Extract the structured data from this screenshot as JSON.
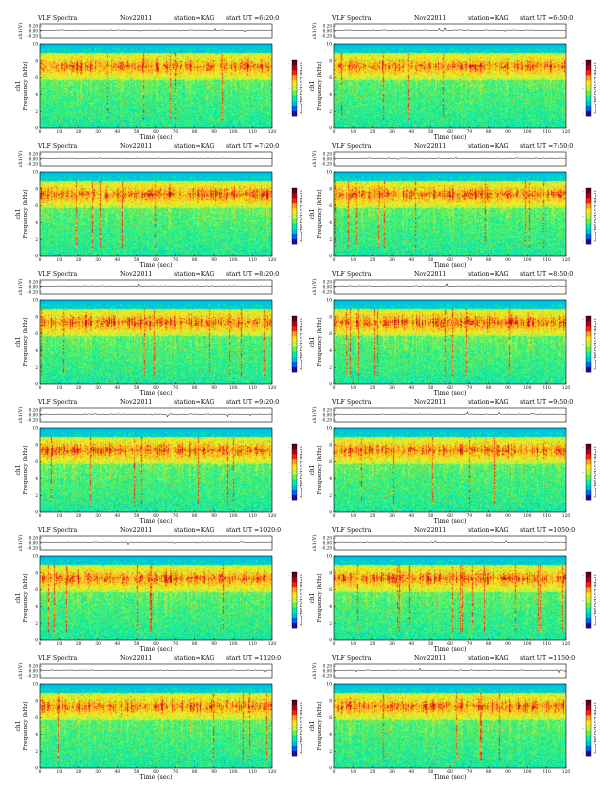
{
  "chart_data": [
    {
      "type": "heatmap",
      "title": "VLF Spectra",
      "date": "Nov22011",
      "station": "station=KAG",
      "start_ut": "start  UT =6:20:0",
      "top_ylabel": "ch1(V)",
      "top_yticks": [
        "0.20",
        "0.00",
        "-0.20"
      ],
      "ylabel": "Frequency (kHz)",
      "ylabel_ch": "ch1",
      "xlabel": "Time (sec)",
      "xticks": [
        0,
        10,
        20,
        30,
        40,
        50,
        60,
        70,
        80,
        90,
        100,
        110,
        120
      ],
      "yticks": [
        0,
        2,
        4,
        6,
        8,
        10
      ],
      "xlim": [
        0,
        120
      ],
      "ylim": [
        0,
        10
      ],
      "colorbar_label": "log(PSD(V^2/Hz))",
      "colorbar_ticks": [
        "-",
        "-",
        "-"
      ]
    },
    {
      "type": "heatmap",
      "title": "VLF Spectra",
      "date": "Nov22011",
      "station": "station=KAG",
      "start_ut": "start  UT =6:50:0",
      "top_ylabel": "ch1(V)",
      "top_yticks": [
        "0.20",
        "0.00",
        "-0.20"
      ],
      "ylabel": "Frequency (kHz)",
      "ylabel_ch": "ch1",
      "xlabel": "Time (sec)",
      "xticks": [
        0,
        10,
        20,
        30,
        40,
        50,
        60,
        70,
        80,
        90,
        100,
        110,
        120
      ],
      "yticks": [
        0,
        2,
        4,
        6,
        8,
        10
      ],
      "xlim": [
        0,
        120
      ],
      "ylim": [
        0,
        10
      ],
      "colorbar_label": "log(PSD(V^2/Hz))",
      "colorbar_ticks": [
        "-",
        "-",
        "-"
      ]
    },
    {
      "type": "heatmap",
      "title": "VLF Spectra",
      "date": "Nov22011",
      "station": "station=KAG",
      "start_ut": "start  UT =7:20:0",
      "top_ylabel": "ch1(V)",
      "top_yticks": [
        "0.20",
        "0.00",
        "-0.20"
      ],
      "ylabel": "Frequency (kHz)",
      "ylabel_ch": "ch1",
      "xlabel": "Time (sec)",
      "xticks": [
        0,
        10,
        20,
        30,
        40,
        50,
        60,
        70,
        80,
        90,
        100,
        110,
        120
      ],
      "yticks": [
        0,
        2,
        4,
        6,
        8,
        10
      ],
      "xlim": [
        0,
        120
      ],
      "ylim": [
        0,
        10
      ],
      "colorbar_label": "log(PSD(V^2/Hz))",
      "colorbar_ticks": [
        "-",
        "-",
        "-"
      ]
    },
    {
      "type": "heatmap",
      "title": "VLF Spectra",
      "date": "Nov22011",
      "station": "station=KAG",
      "start_ut": "start  UT =7:50:0",
      "top_ylabel": "ch1(V)",
      "top_yticks": [
        "0.20",
        "0.00",
        "-0.20"
      ],
      "ylabel": "Frequency (kHz)",
      "ylabel_ch": "ch1",
      "xlabel": "Time (sec)",
      "xticks": [
        0,
        10,
        20,
        30,
        40,
        50,
        60,
        70,
        80,
        90,
        100,
        110,
        120
      ],
      "yticks": [
        0,
        2,
        4,
        6,
        8,
        10
      ],
      "xlim": [
        0,
        120
      ],
      "ylim": [
        0,
        10
      ],
      "colorbar_label": "log(PSD(V^2/Hz))",
      "colorbar_ticks": [
        "-",
        "-",
        "-"
      ]
    },
    {
      "type": "heatmap",
      "title": "VLF Spectra",
      "date": "Nov22011",
      "station": "station=KAG",
      "start_ut": "start  UT =8:20:0",
      "top_ylabel": "ch1(V)",
      "top_yticks": [
        "0.20",
        "0.00",
        "-0.20"
      ],
      "ylabel": "Frequency (kHz)",
      "ylabel_ch": "ch1",
      "xlabel": "Time (sec)",
      "xticks": [
        0,
        10,
        20,
        30,
        40,
        50,
        60,
        70,
        80,
        90,
        100,
        110,
        120
      ],
      "yticks": [
        0,
        2,
        4,
        6,
        8,
        10
      ],
      "xlim": [
        0,
        120
      ],
      "ylim": [
        0,
        10
      ],
      "colorbar_label": "log(PSD(V^2/Hz))",
      "colorbar_ticks": [
        "-",
        "-",
        "-"
      ]
    },
    {
      "type": "heatmap",
      "title": "VLF Spectra",
      "date": "Nov22011",
      "station": "station=KAG",
      "start_ut": "start  UT =8:50:0",
      "top_ylabel": "ch1(V)",
      "top_yticks": [
        "0.20",
        "0.00",
        "-0.20"
      ],
      "ylabel": "Frequency (kHz)",
      "ylabel_ch": "ch1",
      "xlabel": "Time (sec)",
      "xticks": [
        0,
        10,
        20,
        30,
        40,
        50,
        60,
        70,
        80,
        90,
        100,
        110,
        120
      ],
      "yticks": [
        0,
        2,
        4,
        6,
        8,
        10
      ],
      "xlim": [
        0,
        120
      ],
      "ylim": [
        0,
        10
      ],
      "colorbar_label": "log(PSD(V^2/Hz))",
      "colorbar_ticks": [
        "-",
        "-",
        "-"
      ]
    },
    {
      "type": "heatmap",
      "title": "VLF Spectra",
      "date": "Nov22011",
      "station": "station=KAG",
      "start_ut": "start  UT =9:20:0",
      "top_ylabel": "ch1(V)",
      "top_yticks": [
        "0.20",
        "0.00",
        "-0.20"
      ],
      "ylabel": "Frequency (kHz)",
      "ylabel_ch": "ch1",
      "xlabel": "Time (sec)",
      "xticks": [
        0,
        10,
        20,
        30,
        40,
        50,
        60,
        70,
        80,
        90,
        100,
        110,
        120
      ],
      "yticks": [
        0,
        2,
        4,
        6,
        8,
        10
      ],
      "xlim": [
        0,
        120
      ],
      "ylim": [
        0,
        10
      ],
      "colorbar_label": "log(PSD(V^2/Hz))",
      "colorbar_ticks": [
        "-",
        "-",
        "-"
      ]
    },
    {
      "type": "heatmap",
      "title": "VLF Spectra",
      "date": "Nov22011",
      "station": "station=KAG",
      "start_ut": "start  UT =9:50:0",
      "top_ylabel": "ch1(V)",
      "top_yticks": [
        "0.20",
        "0.00",
        "-0.20"
      ],
      "ylabel": "Frequency (kHz)",
      "ylabel_ch": "ch1",
      "xlabel": "Time (sec)",
      "xticks": [
        0,
        10,
        20,
        30,
        40,
        50,
        60,
        70,
        80,
        90,
        100,
        110,
        120
      ],
      "yticks": [
        0,
        2,
        4,
        6,
        8,
        10
      ],
      "xlim": [
        0,
        120
      ],
      "ylim": [
        0,
        10
      ],
      "colorbar_label": "log(PSD(V^2/Hz))",
      "colorbar_ticks": [
        "-",
        "-",
        "-"
      ]
    },
    {
      "type": "heatmap",
      "title": "VLF Spectra",
      "date": "Nov22011",
      "station": "station=KAG",
      "start_ut": "start  UT =1020:0",
      "top_ylabel": "ch1(V)",
      "top_yticks": [
        "0.20",
        "0.00",
        "-0.20"
      ],
      "ylabel": "Frequency (kHz)",
      "ylabel_ch": "ch1",
      "xlabel": "Time (sec)",
      "xticks": [
        0,
        10,
        20,
        30,
        40,
        50,
        60,
        70,
        80,
        90,
        100,
        110,
        120
      ],
      "yticks": [
        0,
        2,
        4,
        6,
        8,
        10
      ],
      "xlim": [
        0,
        120
      ],
      "ylim": [
        0,
        10
      ],
      "colorbar_label": "log(PSD(V^2/Hz))",
      "colorbar_ticks": [
        "-",
        "-",
        "-"
      ]
    },
    {
      "type": "heatmap",
      "title": "VLF Spectra",
      "date": "Nov22011",
      "station": "station=KAG",
      "start_ut": "start  UT =1050:0",
      "top_ylabel": "ch1(V)",
      "top_yticks": [
        "0.20",
        "0.00",
        "-0.20"
      ],
      "ylabel": "Frequency (kHz)",
      "ylabel_ch": "ch1",
      "xlabel": "Time (sec)",
      "xticks": [
        0,
        10,
        20,
        30,
        40,
        50,
        60,
        70,
        80,
        90,
        100,
        110,
        120
      ],
      "yticks": [
        0,
        2,
        4,
        6,
        8,
        10
      ],
      "xlim": [
        0,
        120
      ],
      "ylim": [
        0,
        10
      ],
      "colorbar_label": "log(PSD(V^2/Hz))",
      "colorbar_ticks": [
        "-",
        "-",
        "-"
      ]
    },
    {
      "type": "heatmap",
      "title": "VLF Spectra",
      "date": "Nov22011",
      "station": "station=KAG",
      "start_ut": "start  UT =1120:0",
      "top_ylabel": "ch1(V)",
      "top_yticks": [
        "0.20",
        "0.00",
        "-0.20"
      ],
      "ylabel": "Frequency (kHz)",
      "ylabel_ch": "ch1",
      "xlabel": "Time (sec)",
      "xticks": [
        0,
        10,
        20,
        30,
        40,
        50,
        60,
        70,
        80,
        90,
        100,
        110,
        120
      ],
      "yticks": [
        0,
        2,
        4,
        6,
        8,
        10
      ],
      "xlim": [
        0,
        120
      ],
      "ylim": [
        0,
        10
      ],
      "colorbar_label": "log(PSD(V^2/Hz))",
      "colorbar_ticks": [
        "-",
        "-",
        "-"
      ]
    },
    {
      "type": "heatmap",
      "title": "VLF Spectra",
      "date": "Nov22011",
      "station": "station=KAG",
      "start_ut": "start  UT =1150:0",
      "top_ylabel": "ch1(V)",
      "top_yticks": [
        "0.20",
        "0.00",
        "-0.20"
      ],
      "ylabel": "Frequency (kHz)",
      "ylabel_ch": "ch1",
      "xlabel": "Time (sec)",
      "xticks": [
        0,
        10,
        20,
        30,
        40,
        50,
        60,
        70,
        80,
        90,
        100,
        110,
        120
      ],
      "yticks": [
        0,
        2,
        4,
        6,
        8,
        10
      ],
      "xlim": [
        0,
        120
      ],
      "ylim": [
        0,
        10
      ],
      "colorbar_label": "log(PSD(V^2/Hz))",
      "colorbar_ticks": [
        "-",
        "-",
        "-"
      ]
    }
  ],
  "colors": {
    "colormap": [
      "#1a10a0",
      "#0060ff",
      "#00c0e0",
      "#10e8a0",
      "#60f060",
      "#c8f040",
      "#f8e818",
      "#f8a020",
      "#e82818",
      "#b00010",
      "#600010"
    ]
  }
}
